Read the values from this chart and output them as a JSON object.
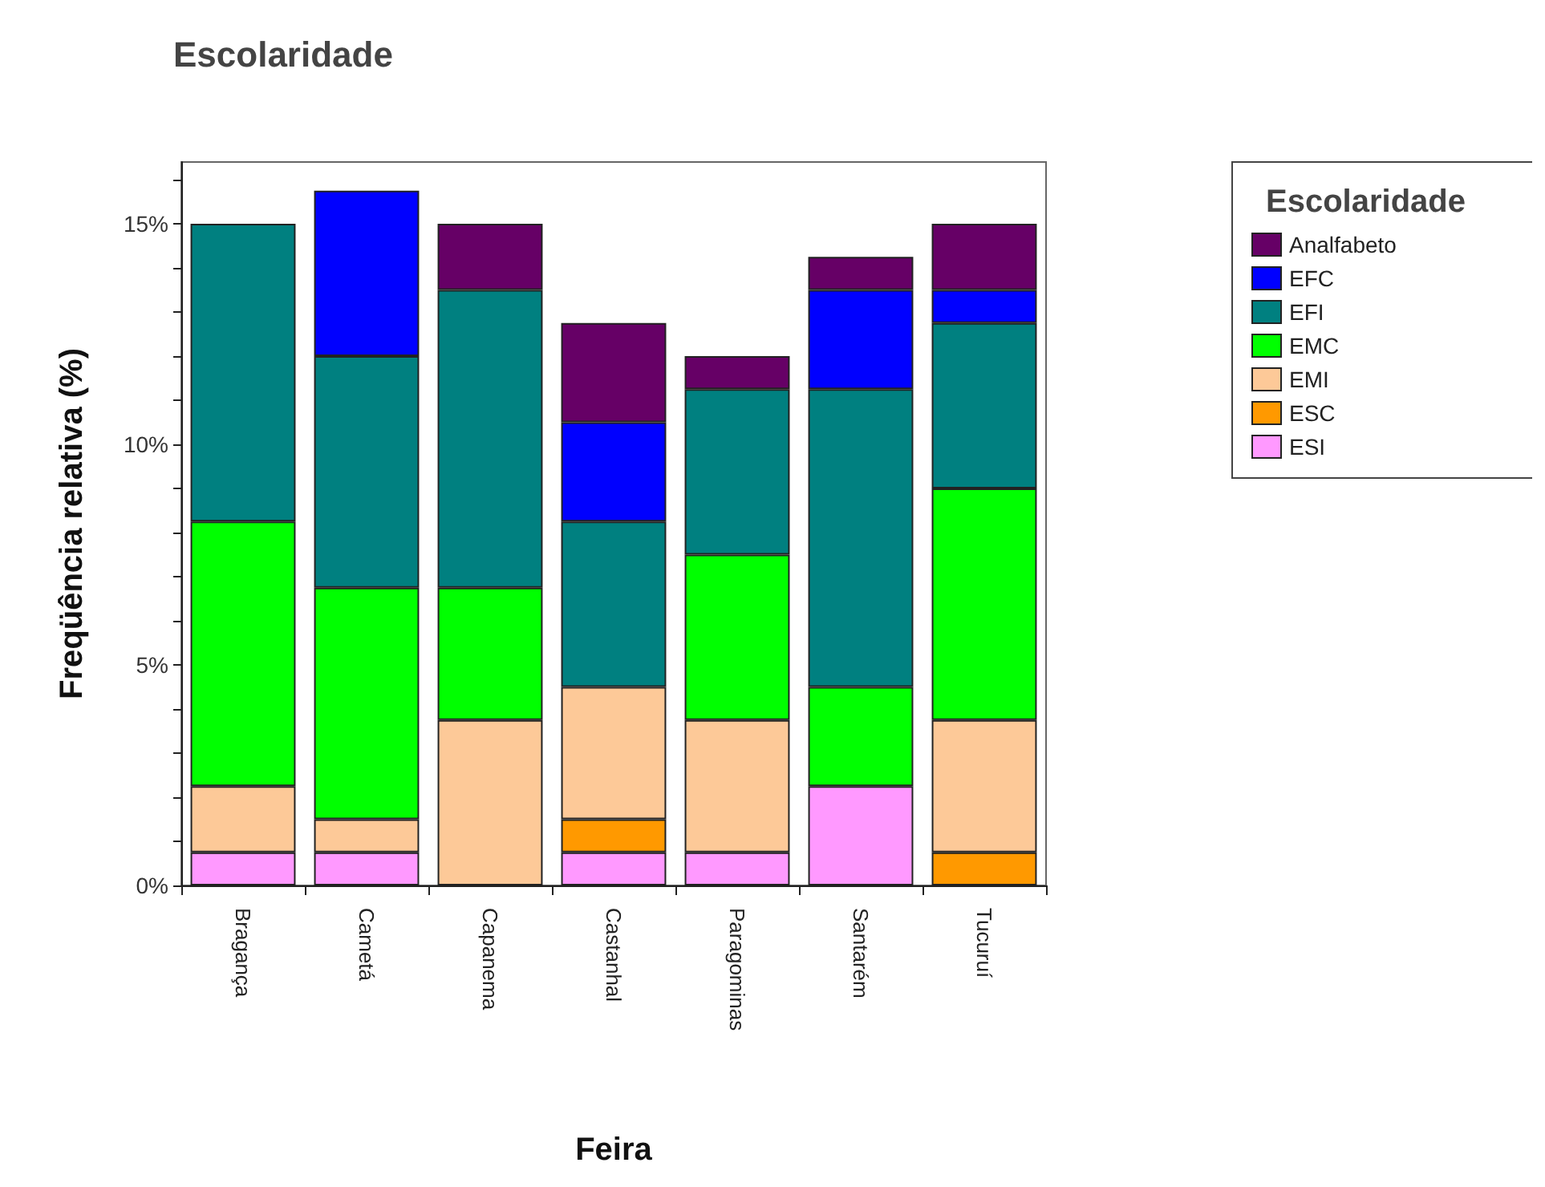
{
  "chart_data": {
    "type": "bar",
    "title": "Escolaridade",
    "xlabel": "Feira",
    "ylabel": "Freqüência relativa (%)",
    "legend_title": "Escolaridade",
    "stacked": true,
    "grid": false,
    "legend": "top right",
    "categories": [
      "Bragança",
      "Cametá",
      "Capanema",
      "Castanhal",
      "Paragominas",
      "Santarém",
      "Tucuruí"
    ],
    "ylim": [
      0,
      16.4
    ],
    "yticks": [
      {
        "value": 0,
        "label": "0%"
      },
      {
        "value": 1,
        "label": null
      },
      {
        "value": 2,
        "label": null
      },
      {
        "value": 3,
        "label": null
      },
      {
        "value": 4,
        "label": null
      },
      {
        "value": 5,
        "label": "5%"
      },
      {
        "value": 6,
        "label": null
      },
      {
        "value": 7,
        "label": null
      },
      {
        "value": 8,
        "label": null
      },
      {
        "value": 9,
        "label": null
      },
      {
        "value": 10,
        "label": "10%"
      },
      {
        "value": 11,
        "label": null
      },
      {
        "value": 12,
        "label": null
      },
      {
        "value": 13,
        "label": null
      },
      {
        "value": 14,
        "label": null
      },
      {
        "value": 15,
        "label": "15%"
      },
      {
        "value": 16,
        "label": null
      }
    ],
    "series": [
      {
        "name": "ESI",
        "color": "#ff99ff",
        "values": [
          0.75,
          0.75,
          null,
          0.75,
          0.75,
          2.25,
          null
        ]
      },
      {
        "name": "ESC",
        "color": "#ff9900",
        "values": [
          null,
          null,
          null,
          0.75,
          null,
          null,
          0.75
        ]
      },
      {
        "name": "EMI",
        "color": "#fdc998",
        "values": [
          1.5,
          0.75,
          3.75,
          3.0,
          3.0,
          null,
          3.0
        ]
      },
      {
        "name": "EMC",
        "color": "#00ff00",
        "values": [
          6.0,
          5.25,
          3.0,
          null,
          3.75,
          2.25,
          5.25
        ]
      },
      {
        "name": "EFI",
        "color": "#008080",
        "values": [
          6.75,
          5.25,
          6.75,
          3.75,
          3.75,
          6.75,
          3.75
        ]
      },
      {
        "name": "EFC",
        "color": "#0000ff",
        "values": [
          null,
          3.75,
          null,
          2.25,
          null,
          2.25,
          0.75
        ]
      },
      {
        "name": "Analfabeto",
        "color": "#660066",
        "values": [
          null,
          null,
          1.5,
          2.25,
          0.75,
          0.75,
          1.5
        ]
      }
    ]
  }
}
